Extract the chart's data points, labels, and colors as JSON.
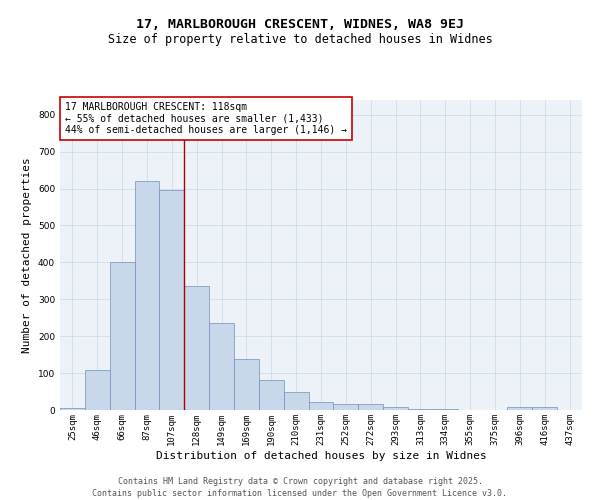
{
  "title_line1": "17, MARLBOROUGH CRESCENT, WIDNES, WA8 9EJ",
  "title_line2": "Size of property relative to detached houses in Widnes",
  "xlabel": "Distribution of detached houses by size in Widnes",
  "ylabel": "Number of detached properties",
  "categories": [
    "25sqm",
    "46sqm",
    "66sqm",
    "87sqm",
    "107sqm",
    "128sqm",
    "149sqm",
    "169sqm",
    "190sqm",
    "210sqm",
    "231sqm",
    "252sqm",
    "272sqm",
    "293sqm",
    "313sqm",
    "334sqm",
    "355sqm",
    "375sqm",
    "396sqm",
    "416sqm",
    "437sqm"
  ],
  "values": [
    5,
    108,
    400,
    620,
    595,
    335,
    235,
    138,
    82,
    50,
    22,
    15,
    17,
    8,
    3,
    2,
    0,
    0,
    7,
    8,
    0
  ],
  "bar_color": "#c8d8ea",
  "bar_edge_color": "#7090b8",
  "vline_x": 4.5,
  "vline_color": "#aa0000",
  "annotation_text": "17 MARLBOROUGH CRESCENT: 118sqm\n← 55% of detached houses are smaller (1,433)\n44% of semi-detached houses are larger (1,146) →",
  "annotation_box_color": "#ffffff",
  "annotation_box_edge": "#cc0000",
  "ylim": [
    0,
    840
  ],
  "yticks": [
    0,
    100,
    200,
    300,
    400,
    500,
    600,
    700,
    800
  ],
  "grid_color": "#c8d8e8",
  "bg_color": "#edf2f8",
  "footer_line1": "Contains HM Land Registry data © Crown copyright and database right 2025.",
  "footer_line2": "Contains public sector information licensed under the Open Government Licence v3.0.",
  "title_fontsize": 9.5,
  "subtitle_fontsize": 8.5,
  "axis_label_fontsize": 8,
  "tick_fontsize": 6.5,
  "annotation_fontsize": 7,
  "footer_fontsize": 6
}
